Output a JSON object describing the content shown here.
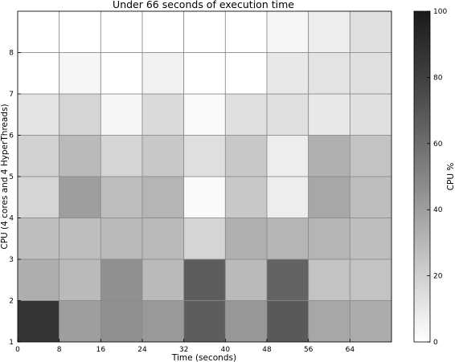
{
  "chart_data": {
    "type": "heatmap",
    "title": "Under 66 seconds of execution time",
    "xlabel": "Time (seconds)",
    "ylabel": "CPU (4 cores and 4 HyperThreads)",
    "colorbar_label": "CPU %",
    "colormap": "greys",
    "color_range": [
      0,
      100
    ],
    "colorbar_ticks": [
      0,
      20,
      40,
      60,
      80,
      100
    ],
    "x_ticks": [
      0,
      8,
      16,
      24,
      32,
      40,
      48,
      56,
      64
    ],
    "y_ticks": [
      1,
      2,
      3,
      4,
      5,
      6,
      7,
      8
    ],
    "xlim": [
      0,
      72
    ],
    "ylim": [
      1,
      9
    ],
    "grid": true,
    "bin_width_seconds": 8,
    "rows": [
      {
        "cpu": 1,
        "values": [
          88,
          42,
          48,
          44,
          70,
          45,
          72,
          38,
          36
        ]
      },
      {
        "cpu": 2,
        "values": [
          35,
          30,
          48,
          30,
          70,
          30,
          68,
          26,
          26
        ]
      },
      {
        "cpu": 3,
        "values": [
          28,
          28,
          30,
          30,
          18,
          34,
          32,
          32,
          28
        ]
      },
      {
        "cpu": 4,
        "values": [
          18,
          42,
          28,
          32,
          2,
          24,
          8,
          38,
          28
        ]
      },
      {
        "cpu": 5,
        "values": [
          20,
          30,
          18,
          24,
          14,
          24,
          8,
          34,
          26
        ]
      },
      {
        "cpu": 6,
        "values": [
          12,
          18,
          4,
          16,
          2,
          14,
          14,
          10,
          14
        ]
      },
      {
        "cpu": 7,
        "values": [
          0,
          4,
          0,
          6,
          0,
          0,
          10,
          12,
          14
        ]
      },
      {
        "cpu": 8,
        "values": [
          0,
          0,
          0,
          0,
          0,
          0,
          4,
          8,
          14
        ]
      }
    ]
  }
}
